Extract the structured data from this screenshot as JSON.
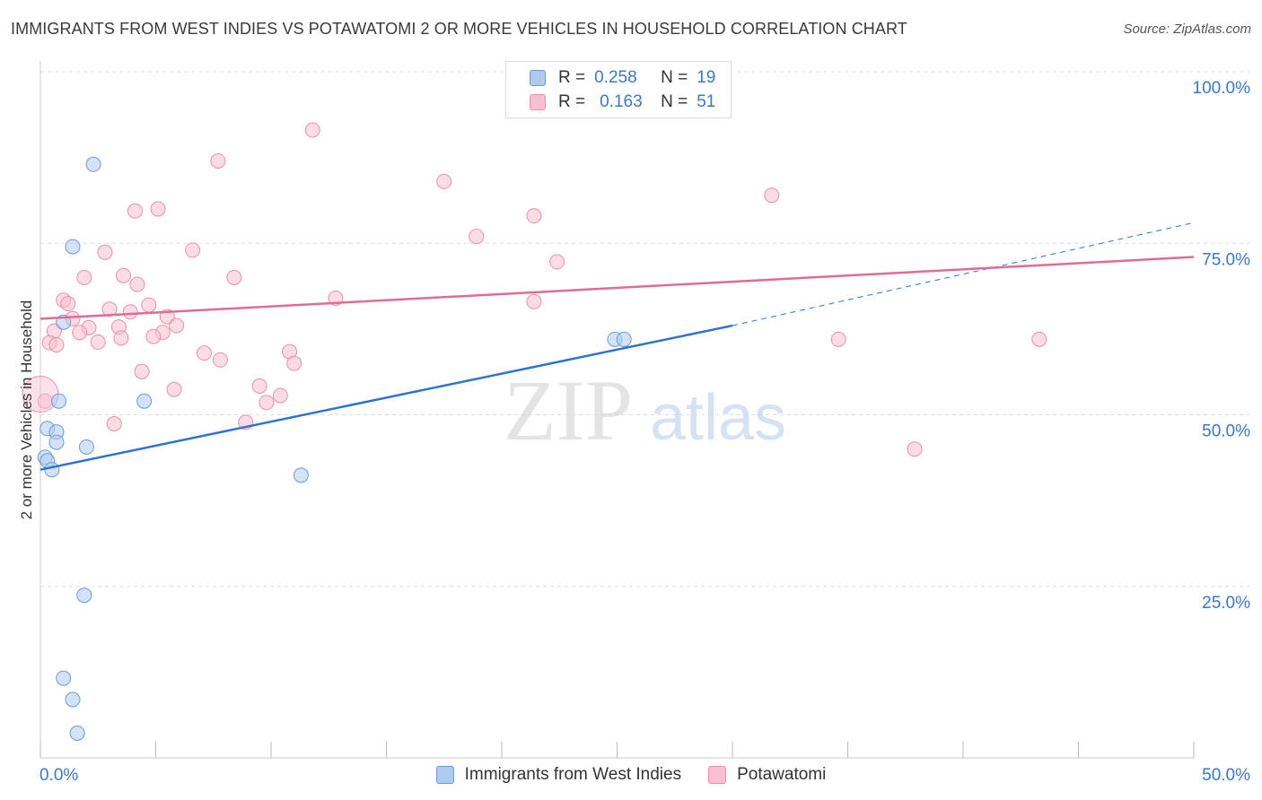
{
  "title": "IMMIGRANTS FROM WEST INDIES VS POTAWATOMI 2 OR MORE VEHICLES IN HOUSEHOLD CORRELATION CHART",
  "source": "Source: ZipAtlas.com",
  "watermark": {
    "zip": "ZIP",
    "atlas": "atlas"
  },
  "legend": {
    "r_label": "R =",
    "n_label": "N =",
    "series1": {
      "r": "0.258",
      "n": "19"
    },
    "series2": {
      "r": "0.163",
      "n": "51"
    }
  },
  "colors": {
    "blue_fill": "#aecbef",
    "blue_stroke": "#6b9bd8",
    "blue_line": "#2f72d0",
    "pink_fill": "#f7bfd0",
    "pink_stroke": "#e890ab",
    "pink_line": "#e26b93",
    "tick_label": "#3b78c8",
    "grid": "#dddddd"
  },
  "chart_data": {
    "type": "scatter",
    "title": "IMMIGRANTS FROM WEST INDIES VS POTAWATOMI 2 OR MORE VEHICLES IN HOUSEHOLD CORRELATION CHART",
    "xlabel": "",
    "ylabel": "2 or more Vehicles in Household",
    "xlim": [
      0,
      50
    ],
    "ylim": [
      0,
      100
    ],
    "x_tick_labels": [
      "0.0%",
      "50.0%"
    ],
    "y_ticks": [
      25,
      50,
      75,
      100
    ],
    "y_tick_labels": [
      "25.0%",
      "50.0%",
      "75.0%",
      "100.0%"
    ],
    "series": [
      {
        "name": "Immigrants from West Indies",
        "r": 0.258,
        "n": 19,
        "points": [
          [
            2.3,
            86.5
          ],
          [
            1.4,
            74.5
          ],
          [
            1.0,
            63.5
          ],
          [
            0.8,
            52.0
          ],
          [
            4.5,
            52.0
          ],
          [
            0.3,
            48.0
          ],
          [
            0.7,
            47.5
          ],
          [
            0.7,
            46.0
          ],
          [
            2.0,
            45.3
          ],
          [
            0.2,
            43.8
          ],
          [
            0.3,
            43.3
          ],
          [
            0.5,
            42.0
          ],
          [
            11.3,
            41.2
          ],
          [
            24.9,
            61.0
          ],
          [
            25.3,
            61.0
          ],
          [
            1.9,
            23.7
          ],
          [
            1.0,
            11.6
          ],
          [
            1.4,
            8.5
          ],
          [
            1.6,
            3.6
          ]
        ],
        "trend": {
          "x0": 0,
          "y0": 42.0,
          "x1": 30,
          "y1": 63.0,
          "dash_to_x": 50,
          "dash_to_y": 78.0
        }
      },
      {
        "name": "Potawatomi",
        "r": 0.163,
        "n": 51,
        "points": [
          [
            11.8,
            91.5
          ],
          [
            7.7,
            87.0
          ],
          [
            17.5,
            84.0
          ],
          [
            31.7,
            82.0
          ],
          [
            5.1,
            80.0
          ],
          [
            4.1,
            79.7
          ],
          [
            21.4,
            79.0
          ],
          [
            18.9,
            76.0
          ],
          [
            2.8,
            73.7
          ],
          [
            6.6,
            74.0
          ],
          [
            22.4,
            72.3
          ],
          [
            1.9,
            70.0
          ],
          [
            3.6,
            70.3
          ],
          [
            8.4,
            70.0
          ],
          [
            4.2,
            69.0
          ],
          [
            12.8,
            67.0
          ],
          [
            21.4,
            66.5
          ],
          [
            1.0,
            66.7
          ],
          [
            1.2,
            66.2
          ],
          [
            4.7,
            66.0
          ],
          [
            3.0,
            65.4
          ],
          [
            3.9,
            65.0
          ],
          [
            1.4,
            64.0
          ],
          [
            5.5,
            64.3
          ],
          [
            5.9,
            63.0
          ],
          [
            3.4,
            62.8
          ],
          [
            2.1,
            62.7
          ],
          [
            0.6,
            62.2
          ],
          [
            1.7,
            62.0
          ],
          [
            5.3,
            62.0
          ],
          [
            4.9,
            61.4
          ],
          [
            3.5,
            61.2
          ],
          [
            34.6,
            61.0
          ],
          [
            43.3,
            61.0
          ],
          [
            2.5,
            60.6
          ],
          [
            0.4,
            60.5
          ],
          [
            0.7,
            60.2
          ],
          [
            7.1,
            59.0
          ],
          [
            10.8,
            59.2
          ],
          [
            7.8,
            58.0
          ],
          [
            11.0,
            57.5
          ],
          [
            4.4,
            56.3
          ],
          [
            9.5,
            54.2
          ],
          [
            5.8,
            53.7
          ],
          [
            10.4,
            52.8
          ],
          [
            9.8,
            51.8
          ],
          [
            0.2,
            52.0
          ],
          [
            3.2,
            48.7
          ],
          [
            8.9,
            48.9
          ],
          [
            37.9,
            45.0
          ],
          [
            0.0,
            53.0
          ]
        ],
        "trend": {
          "x0": 0,
          "y0": 64.0,
          "x1": 50,
          "y1": 73.0
        }
      }
    ]
  }
}
